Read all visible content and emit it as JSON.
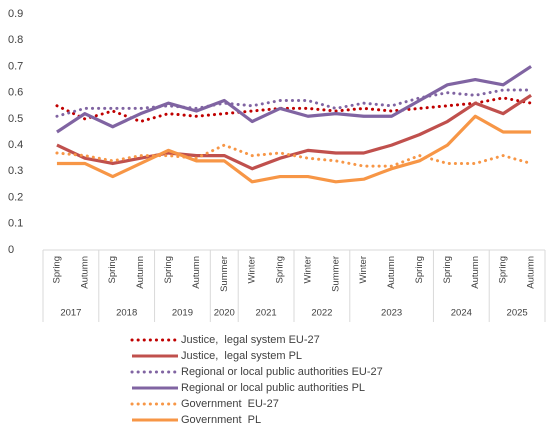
{
  "chart_data": {
    "type": "line",
    "categories": [
      "Spring",
      "Autumn",
      "Spring",
      "Autumn",
      "Spring",
      "Autumn",
      "Summer",
      "Winter",
      "Spring",
      "Winter",
      "Summer",
      "Winter",
      "Autumn",
      "Spring",
      "Spring",
      "Autumn",
      "Spring",
      "Autumn"
    ],
    "x_groups": [
      {
        "label": "2017",
        "span": 2
      },
      {
        "label": "2018",
        "span": 2
      },
      {
        "label": "2019",
        "span": 2
      },
      {
        "label": "2020",
        "span": 1
      },
      {
        "label": "2021",
        "span": 2
      },
      {
        "label": "2022",
        "span": 2
      },
      {
        "label": "2023",
        "span": 3
      },
      {
        "label": "2024",
        "span": 2
      },
      {
        "label": "2025",
        "span": 2
      }
    ],
    "ylim": [
      0,
      0.9
    ],
    "yticks": [
      0,
      0.1,
      0.2,
      0.3,
      0.4,
      0.5,
      0.6,
      0.7,
      0.8,
      0.9
    ],
    "grid": false,
    "legend": "bottom",
    "series": [
      {
        "name": "Justice,  legal system EU-27",
        "color": "#c00000",
        "dash": "dotted",
        "values": [
          0.55,
          0.5,
          0.53,
          0.49,
          0.52,
          0.51,
          0.52,
          0.53,
          0.54,
          0.54,
          0.53,
          0.54,
          0.53,
          0.54,
          0.55,
          0.56,
          0.58,
          0.56
        ]
      },
      {
        "name": "Justice,  legal system PL",
        "color": "#c0504d",
        "dash": "solid",
        "values": [
          0.4,
          0.35,
          0.33,
          0.35,
          0.37,
          0.36,
          0.36,
          0.31,
          0.35,
          0.38,
          0.37,
          0.37,
          0.4,
          0.44,
          0.49,
          0.56,
          0.52,
          0.59
        ]
      },
      {
        "name": "Regional or local public authorities EU-27",
        "color": "#8064a2",
        "dash": "dotted",
        "values": [
          0.51,
          0.54,
          0.54,
          0.54,
          0.55,
          0.54,
          0.56,
          0.55,
          0.57,
          0.57,
          0.54,
          0.56,
          0.55,
          0.58,
          0.6,
          0.59,
          0.61,
          0.61
        ]
      },
      {
        "name": "Regional or local public authorities PL",
        "color": "#8064a2",
        "dash": "solid",
        "values": [
          0.45,
          0.52,
          0.47,
          0.52,
          0.56,
          0.53,
          0.57,
          0.49,
          0.54,
          0.51,
          0.52,
          0.51,
          0.51,
          0.57,
          0.63,
          0.65,
          0.63,
          0.7
        ]
      },
      {
        "name": "Government  EU-27",
        "color": "#f79646",
        "dash": "dotted",
        "values": [
          0.37,
          0.36,
          0.34,
          0.36,
          0.36,
          0.35,
          0.4,
          0.36,
          0.37,
          0.35,
          0.34,
          0.32,
          0.32,
          0.36,
          0.33,
          0.33,
          0.36,
          0.33
        ]
      },
      {
        "name": "Government  PL",
        "color": "#f79646",
        "dash": "solid",
        "values": [
          0.33,
          0.33,
          0.28,
          0.33,
          0.38,
          0.34,
          0.34,
          0.26,
          0.28,
          0.28,
          0.26,
          0.27,
          0.31,
          0.34,
          0.4,
          0.51,
          0.45,
          0.45
        ]
      }
    ]
  }
}
